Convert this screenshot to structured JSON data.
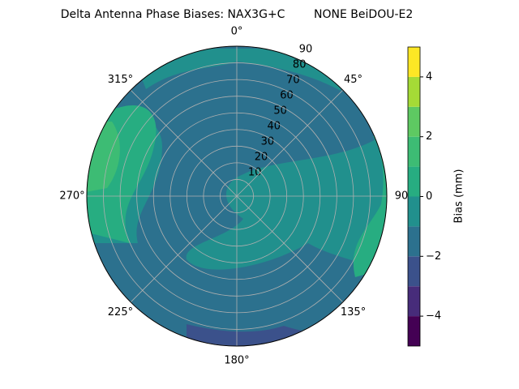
{
  "chart_data": {
    "type": "polar_contour",
    "title": "Delta Antenna Phase Biases: NAX3G+C        NONE BeiDOU-E2",
    "rlim": [
      0,
      90
    ],
    "rticks": [
      10,
      20,
      30,
      40,
      50,
      60,
      70,
      80,
      90
    ],
    "thetaticks": [
      {
        "value": 0,
        "label": "0°"
      },
      {
        "value": 45,
        "label": "45°"
      },
      {
        "value": 90,
        "label": "90"
      },
      {
        "value": 135,
        "label": "135°"
      },
      {
        "value": 180,
        "label": "180°"
      },
      {
        "value": 225,
        "label": "225°"
      },
      {
        "value": 270,
        "label": "270°"
      },
      {
        "value": 315,
        "label": "315°"
      }
    ],
    "grid": true,
    "levels": [
      -5,
      -4,
      -3,
      -2,
      -1,
      0,
      1,
      2,
      3,
      4,
      5
    ],
    "colors": [
      "#440154",
      "#472c7a",
      "#3b518b",
      "#2c718e",
      "#21908d",
      "#27ad81",
      "#3dbc74",
      "#5ec962",
      "#a5db36",
      "#fde725"
    ],
    "colorbar_label": "Bias (mm)",
    "colorbar_lim": [
      -5,
      5
    ],
    "colorbar_ticks": [
      {
        "value": -4,
        "label": "−4"
      },
      {
        "value": -2,
        "label": "−2"
      },
      0,
      2,
      4
    ]
  }
}
